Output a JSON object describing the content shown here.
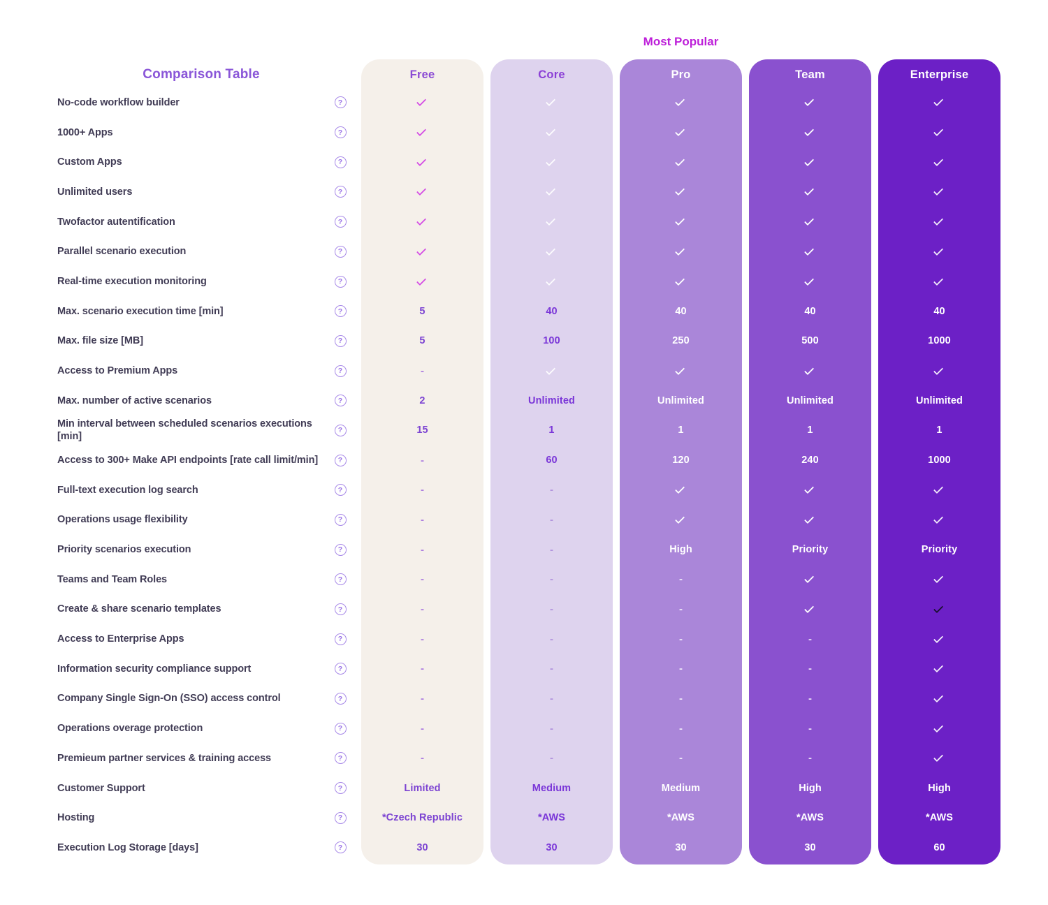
{
  "page": {
    "title": "Comparison Table",
    "title_color": "#8A56D8",
    "most_popular_label": "Most Popular",
    "most_popular_color": "#BD1FD9"
  },
  "icons": {
    "help_glyph": "?"
  },
  "dark_check_color": "#1A0F2E",
  "columns": [
    {
      "name": "Free",
      "bg": "#F5F0EA",
      "header_color": "#8B4BD4",
      "text_color": "#7C43D2",
      "check_color": "#D44BE4",
      "dash_color": "#AC7CE0"
    },
    {
      "name": "Core",
      "bg": "#DED3EE",
      "header_color": "#8B3FD6",
      "text_color": "#7A36D8",
      "check_color": "rgba(255,255,255,0.92)",
      "dash_color": "#B193DD"
    },
    {
      "name": "Pro",
      "bg": "#AA86D9",
      "header_color": "#FFFFFF",
      "text_color": "#FFFFFF",
      "check_color": "#FFFFFF",
      "dash_color": "rgba(255,255,255,0.8)"
    },
    {
      "name": "Team",
      "bg": "#8A51CF",
      "header_color": "#FFFFFF",
      "text_color": "#FFFFFF",
      "check_color": "#FFFFFF",
      "dash_color": "rgba(255,255,255,0.8)"
    },
    {
      "name": "Enterprise",
      "bg": "#6C20C6",
      "header_color": "#FFFFFF",
      "text_color": "#FFFFFF",
      "check_color": "#F4EDFB",
      "dash_color": "rgba(255,255,255,0.8)"
    }
  ],
  "rows": [
    {
      "label": "No-code workflow builder",
      "values": [
        "✓",
        "✓",
        "✓",
        "✓",
        "✓"
      ]
    },
    {
      "label": "1000+ Apps",
      "values": [
        "✓",
        "✓",
        "✓",
        "✓",
        "✓"
      ]
    },
    {
      "label": "Custom Apps",
      "values": [
        "✓",
        "✓",
        "✓",
        "✓",
        "✓"
      ]
    },
    {
      "label": "Unlimited users",
      "values": [
        "✓",
        "✓",
        "✓",
        "✓",
        "✓"
      ]
    },
    {
      "label": "Twofactor autentification",
      "values": [
        "✓",
        "✓",
        "✓",
        "✓",
        "✓"
      ]
    },
    {
      "label": "Parallel scenario execution",
      "values": [
        "✓",
        "✓",
        "✓",
        "✓",
        "✓"
      ]
    },
    {
      "label": "Real-time execution monitoring",
      "values": [
        "✓",
        "✓",
        "✓",
        "✓",
        "✓"
      ]
    },
    {
      "label": "Max. scenario execution time [min]",
      "values": [
        "5",
        "40",
        "40",
        "40",
        "40"
      ]
    },
    {
      "label": "Max. file size [MB]",
      "values": [
        "5",
        "100",
        "250",
        "500",
        "1000"
      ]
    },
    {
      "label": "Access to Premium Apps",
      "values": [
        "-",
        "✓",
        "✓",
        "✓",
        "✓"
      ]
    },
    {
      "label": "Max. number of active scenarios",
      "values": [
        "2",
        "Unlimited",
        "Unlimited",
        "Unlimited",
        "Unlimited"
      ]
    },
    {
      "label": "Min interval between scheduled scenarios executions [min]",
      "values": [
        "15",
        "1",
        "1",
        "1",
        "1"
      ]
    },
    {
      "label": "Access to 300+ Make API endpoints [rate call limit/min]",
      "values": [
        "-",
        "60",
        "120",
        "240",
        "1000"
      ]
    },
    {
      "label": "Full-text execution log search",
      "values": [
        "-",
        "-",
        "✓",
        "✓",
        "✓"
      ]
    },
    {
      "label": "Operations usage flexibility",
      "values": [
        "-",
        "-",
        "✓",
        "✓",
        "✓"
      ]
    },
    {
      "label": "Priority scenarios execution",
      "values": [
        "-",
        "-",
        "High",
        "Priority",
        "Priority"
      ]
    },
    {
      "label": "Teams and Team Roles",
      "values": [
        "-",
        "-",
        "-",
        "✓",
        "✓"
      ]
    },
    {
      "label": "Create & share scenario templates",
      "values": [
        "-",
        "-",
        "-",
        "✓",
        "✓"
      ],
      "dark_check_cols": [
        4
      ]
    },
    {
      "label": "Access to Enterprise Apps",
      "values": [
        "-",
        "-",
        "-",
        "-",
        "✓"
      ]
    },
    {
      "label": "Information security compliance support",
      "values": [
        "-",
        "-",
        "-",
        "-",
        "✓"
      ]
    },
    {
      "label": "Company Single Sign-On (SSO) access control",
      "values": [
        "-",
        "-",
        "-",
        "-",
        "✓"
      ]
    },
    {
      "label": "Operations overage protection",
      "values": [
        "-",
        "-",
        "-",
        "-",
        "✓"
      ]
    },
    {
      "label": "Premieum partner services & training access",
      "values": [
        "-",
        "-",
        "-",
        "-",
        "✓"
      ]
    },
    {
      "label": "Customer Support",
      "values": [
        "Limited",
        "Medium",
        "Medium",
        "High",
        "High"
      ]
    },
    {
      "label": "Hosting",
      "values": [
        "*Czech Republic",
        "*AWS",
        "*AWS",
        "*AWS",
        "*AWS"
      ]
    },
    {
      "label": "Execution Log Storage [days]",
      "values": [
        "30",
        "30",
        "30",
        "30",
        "60"
      ]
    }
  ]
}
